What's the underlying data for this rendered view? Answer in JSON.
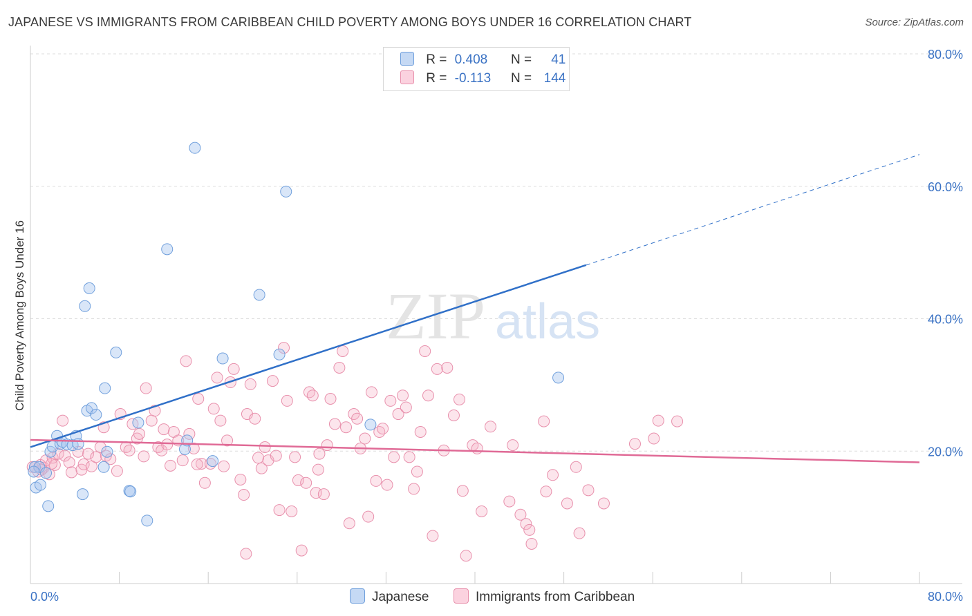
{
  "title": "JAPANESE VS IMMIGRANTS FROM CARIBBEAN CHILD POVERTY AMONG BOYS UNDER 16 CORRELATION CHART",
  "source": "Source: ZipAtlas.com",
  "watermark": {
    "zip": "ZIP",
    "atlas": "atlas"
  },
  "colors": {
    "japanese_fill": "rgba(170,200,240,0.45)",
    "japanese_stroke": "#6f9fdc",
    "japanese_line": "#3070c8",
    "caribbean_fill": "rgba(245,180,200,0.35)",
    "caribbean_stroke": "#e890ac",
    "caribbean_line": "#e06a96",
    "axis_label": "#3a72c4",
    "grid": "#dddddd"
  },
  "legend": {
    "rows": [
      {
        "r_label": "R =",
        "r_value": "0.408",
        "n_label": "N =",
        "n_value": "41",
        "swatch": "japanese"
      },
      {
        "r_label": "R =",
        "r_value": "-0.113",
        "n_label": "N =",
        "n_value": "144",
        "swatch": "caribbean"
      }
    ]
  },
  "bottom_legend": [
    "Japanese",
    "Immigrants from Caribbean"
  ],
  "chart_data": {
    "type": "scatter",
    "xlabel": "",
    "ylabel": "Child Poverty Among Boys Under 16",
    "xlim": [
      0,
      80
    ],
    "ylim": [
      0,
      80
    ],
    "x_tick_labels": [
      "0.0%",
      "80.0%"
    ],
    "y_tick_labels": [
      "20.0%",
      "40.0%",
      "60.0%",
      "80.0%"
    ],
    "y_ticks": [
      20,
      40,
      60,
      80
    ],
    "grid": "horizontal dashed",
    "legend_position": "top-center",
    "series": [
      {
        "name": "Japanese",
        "points": [
          [
            0.4,
            17.6
          ],
          [
            0.5,
            14.5
          ],
          [
            0.8,
            17.6
          ],
          [
            0.9,
            14.9
          ],
          [
            1.4,
            16.7
          ],
          [
            1.6,
            11.7
          ],
          [
            1.8,
            19.9
          ],
          [
            2.0,
            20.7
          ],
          [
            2.4,
            22.3
          ],
          [
            2.7,
            21.1
          ],
          [
            2.9,
            21.4
          ],
          [
            3.3,
            21.0
          ],
          [
            3.8,
            20.9
          ],
          [
            4.1,
            22.3
          ],
          [
            4.3,
            21.1
          ],
          [
            4.7,
            13.5
          ],
          [
            5.1,
            26.1
          ],
          [
            5.3,
            44.6
          ],
          [
            5.5,
            26.5
          ],
          [
            5.9,
            25.5
          ],
          [
            4.9,
            41.9
          ],
          [
            6.6,
            17.6
          ],
          [
            6.7,
            29.5
          ],
          [
            6.9,
            19.9
          ],
          [
            7.7,
            34.9
          ],
          [
            8.9,
            14.0
          ],
          [
            9.0,
            13.9
          ],
          [
            9.7,
            24.3
          ],
          [
            10.5,
            9.5
          ],
          [
            12.3,
            50.5
          ],
          [
            13.9,
            20.3
          ],
          [
            14.1,
            21.6
          ],
          [
            14.8,
            65.8
          ],
          [
            16.4,
            18.5
          ],
          [
            17.3,
            34.0
          ],
          [
            20.6,
            43.6
          ],
          [
            22.4,
            34.6
          ],
          [
            23.0,
            59.2
          ],
          [
            30.6,
            24.0
          ],
          [
            47.5,
            31.1
          ],
          [
            0.3,
            16.9
          ]
        ]
      },
      {
        "name": "Immigrants from Caribbean",
        "points": [
          [
            0.4,
            17.6
          ],
          [
            0.7,
            16.9
          ],
          [
            0.9,
            17.9
          ],
          [
            1.2,
            17.5
          ],
          [
            1.4,
            18.6
          ],
          [
            1.7,
            16.5
          ],
          [
            2.0,
            19.0
          ],
          [
            2.2,
            17.9
          ],
          [
            2.5,
            19.6
          ],
          [
            2.9,
            24.6
          ],
          [
            3.1,
            19.3
          ],
          [
            3.5,
            18.3
          ],
          [
            3.7,
            16.8
          ],
          [
            4.3,
            19.9
          ],
          [
            4.6,
            17.2
          ],
          [
            4.8,
            18.0
          ],
          [
            5.2,
            19.6
          ],
          [
            5.5,
            17.7
          ],
          [
            5.9,
            19.1
          ],
          [
            6.3,
            20.6
          ],
          [
            6.6,
            23.6
          ],
          [
            6.8,
            19.3
          ],
          [
            7.2,
            18.8
          ],
          [
            7.8,
            17.0
          ],
          [
            8.1,
            25.6
          ],
          [
            8.6,
            20.6
          ],
          [
            8.9,
            20.1
          ],
          [
            9.2,
            24.1
          ],
          [
            9.6,
            21.9
          ],
          [
            9.8,
            22.6
          ],
          [
            10.2,
            19.2
          ],
          [
            10.4,
            29.5
          ],
          [
            10.9,
            24.6
          ],
          [
            11.2,
            26.1
          ],
          [
            11.5,
            20.6
          ],
          [
            11.8,
            20.1
          ],
          [
            12.3,
            21.0
          ],
          [
            12.6,
            17.8
          ],
          [
            12.9,
            22.9
          ],
          [
            13.3,
            21.6
          ],
          [
            13.7,
            18.6
          ],
          [
            14.0,
            33.6
          ],
          [
            14.3,
            22.6
          ],
          [
            14.7,
            20.4
          ],
          [
            15.1,
            27.9
          ],
          [
            15.4,
            18.1
          ],
          [
            15.7,
            15.2
          ],
          [
            16.2,
            18.1
          ],
          [
            16.5,
            26.4
          ],
          [
            16.8,
            31.1
          ],
          [
            17.1,
            24.6
          ],
          [
            17.4,
            17.7
          ],
          [
            17.7,
            21.6
          ],
          [
            18.0,
            30.4
          ],
          [
            18.3,
            32.4
          ],
          [
            18.9,
            15.7
          ],
          [
            19.2,
            13.4
          ],
          [
            19.5,
            25.6
          ],
          [
            19.8,
            30.1
          ],
          [
            20.2,
            24.9
          ],
          [
            20.5,
            19.0
          ],
          [
            20.8,
            17.4
          ],
          [
            21.1,
            20.6
          ],
          [
            21.4,
            18.6
          ],
          [
            21.8,
            30.6
          ],
          [
            22.1,
            19.3
          ],
          [
            22.4,
            11.1
          ],
          [
            22.8,
            35.6
          ],
          [
            23.1,
            27.6
          ],
          [
            23.5,
            10.9
          ],
          [
            23.8,
            19.1
          ],
          [
            24.1,
            15.6
          ],
          [
            24.4,
            5.0
          ],
          [
            24.8,
            15.2
          ],
          [
            25.1,
            28.9
          ],
          [
            25.4,
            28.4
          ],
          [
            25.7,
            13.7
          ],
          [
            26.0,
            19.6
          ],
          [
            26.4,
            13.5
          ],
          [
            26.7,
            20.9
          ],
          [
            27.0,
            27.9
          ],
          [
            27.4,
            24.1
          ],
          [
            27.8,
            32.6
          ],
          [
            28.1,
            35.1
          ],
          [
            28.4,
            23.6
          ],
          [
            28.7,
            9.1
          ],
          [
            29.1,
            25.6
          ],
          [
            29.4,
            24.9
          ],
          [
            29.7,
            20.4
          ],
          [
            30.1,
            21.9
          ],
          [
            30.4,
            10.1
          ],
          [
            30.7,
            28.9
          ],
          [
            31.1,
            15.5
          ],
          [
            31.4,
            22.9
          ],
          [
            31.7,
            23.4
          ],
          [
            32.1,
            14.9
          ],
          [
            32.4,
            27.6
          ],
          [
            32.7,
            19.1
          ],
          [
            33.1,
            25.6
          ],
          [
            33.5,
            28.4
          ],
          [
            33.8,
            26.6
          ],
          [
            34.1,
            19.1
          ],
          [
            34.5,
            14.3
          ],
          [
            34.8,
            16.9
          ],
          [
            35.1,
            22.9
          ],
          [
            35.5,
            35.1
          ],
          [
            35.8,
            28.4
          ],
          [
            36.2,
            7.2
          ],
          [
            36.6,
            32.4
          ],
          [
            37.2,
            20.1
          ],
          [
            37.5,
            32.6
          ],
          [
            38.1,
            25.4
          ],
          [
            38.6,
            27.8
          ],
          [
            38.9,
            14.0
          ],
          [
            39.2,
            4.2
          ],
          [
            39.8,
            20.9
          ],
          [
            40.2,
            20.4
          ],
          [
            40.6,
            10.9
          ],
          [
            41.4,
            23.7
          ],
          [
            43.1,
            12.4
          ],
          [
            43.4,
            20.9
          ],
          [
            44.1,
            10.4
          ],
          [
            44.6,
            9.0
          ],
          [
            44.9,
            8.1
          ],
          [
            45.1,
            6.0
          ],
          [
            46.2,
            24.5
          ],
          [
            46.4,
            13.9
          ],
          [
            47.0,
            16.4
          ],
          [
            48.3,
            12.1
          ],
          [
            49.1,
            17.6
          ],
          [
            49.4,
            7.6
          ],
          [
            50.2,
            14.1
          ],
          [
            51.6,
            12.1
          ],
          [
            54.4,
            21.1
          ],
          [
            56.1,
            21.9
          ],
          [
            56.5,
            24.6
          ],
          [
            58.2,
            24.5
          ],
          [
            0.2,
            17.6
          ],
          [
            1.0,
            17.2
          ],
          [
            1.9,
            18.1
          ],
          [
            12.0,
            23.3
          ],
          [
            15.0,
            18.0
          ],
          [
            19.4,
            4.5
          ],
          [
            25.9,
            17.2
          ]
        ]
      }
    ],
    "trendlines": [
      {
        "series": "Japanese",
        "x": [
          0,
          50
        ],
        "y": [
          20.6,
          48.1
        ],
        "style": "solid"
      },
      {
        "series": "Japanese",
        "x": [
          50,
          80
        ],
        "y": [
          48.1,
          64.8
        ],
        "style": "dashed"
      },
      {
        "series": "Immigrants from Caribbean",
        "x": [
          0,
          80
        ],
        "y": [
          21.7,
          18.3
        ],
        "style": "solid"
      }
    ]
  }
}
